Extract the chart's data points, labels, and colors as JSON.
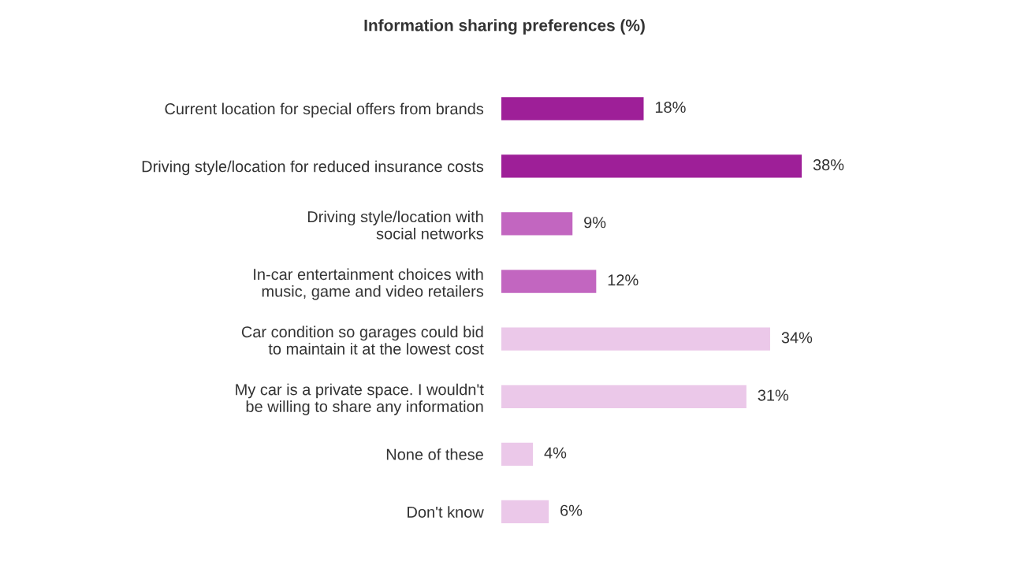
{
  "chart_data": {
    "type": "bar",
    "orientation": "horizontal",
    "title": "Information sharing preferences (%)",
    "categories": [
      "Current location for special offers from brands",
      "Driving style/location for reduced insurance costs",
      "Driving style/location with\nsocial networks",
      "In-car entertainment choices with\nmusic, game and video retailers",
      "Car condition so garages could bid\nto maintain it at the lowest cost",
      "My car is a private space. I wouldn't\nbe willing to share any information",
      "None of these",
      "Don't know"
    ],
    "values": [
      18,
      38,
      9,
      12,
      34,
      31,
      4,
      6
    ],
    "colors": [
      "#9e1f98",
      "#9e1f98",
      "#c266c0",
      "#c266c0",
      "#ebc8e9",
      "#ebc8e9",
      "#ebc8e9",
      "#ebc8e9"
    ],
    "value_labels": [
      "18%",
      "38%",
      "9%",
      "12%",
      "34%",
      "31%",
      "4%",
      "6%"
    ],
    "grid": false,
    "legend": false
  }
}
